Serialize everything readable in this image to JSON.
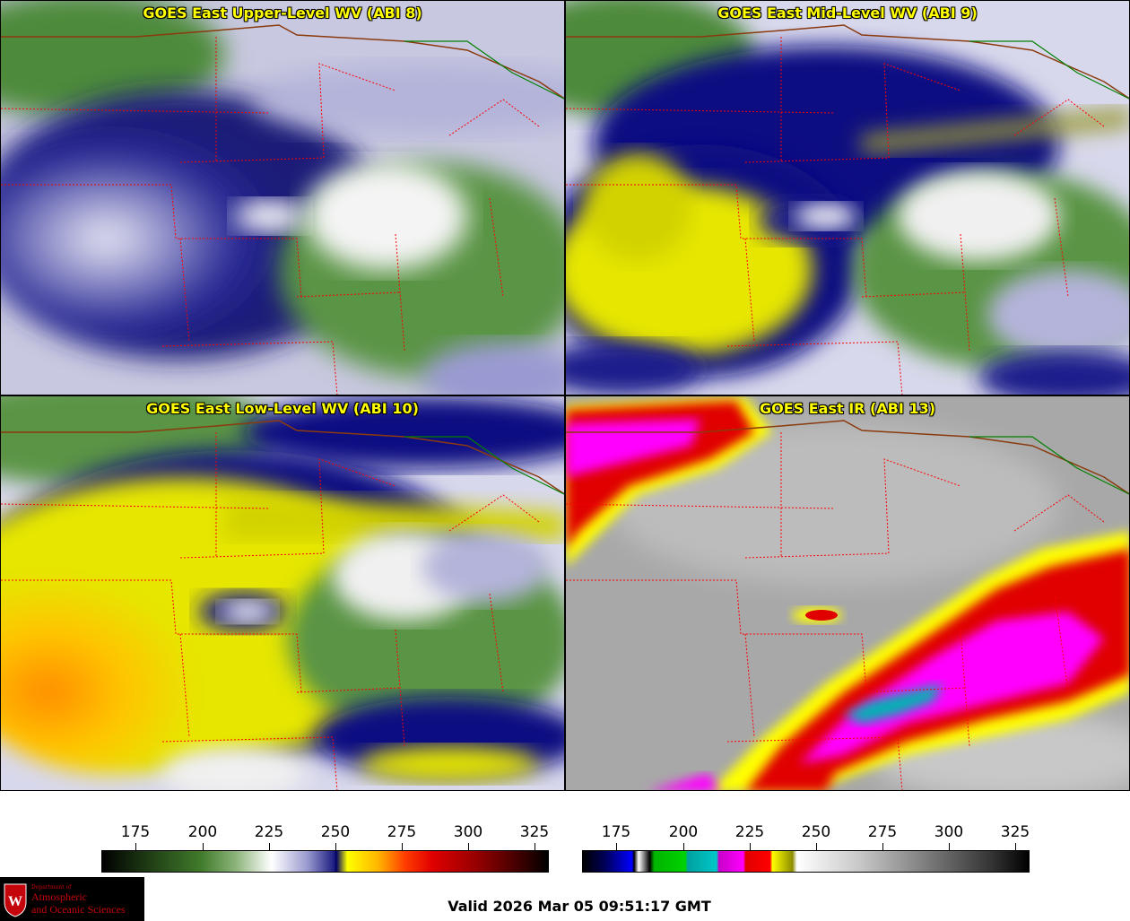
{
  "panels": [
    {
      "title": "GOES East Upper-Level WV (ABI 8)"
    },
    {
      "title": "GOES East Mid-Level WV (ABI 9)"
    },
    {
      "title": "GOES East Low-Level WV (ABI 10)"
    },
    {
      "title": "GOES East IR (ABI 13)"
    }
  ],
  "colorbars": {
    "wv_ticks": [
      "175",
      "200",
      "225",
      "250",
      "275",
      "300",
      "325"
    ],
    "ir_ticks": [
      "175",
      "200",
      "225",
      "250",
      "275",
      "300",
      "325"
    ]
  },
  "logo": {
    "line0": "Department of",
    "line1": "Atmospheric",
    "line2": "and Oceanic Sciences",
    "crest_letter": "W"
  },
  "valid_time": "Valid 2026 Mar 05 09:51:17 GMT",
  "colors": {
    "title_text": "#ffff00",
    "state_borders": "#ff0000",
    "country_border": "#8b3a0e",
    "great_lakes_border": "#008000",
    "logo_red": "#c5050c"
  }
}
